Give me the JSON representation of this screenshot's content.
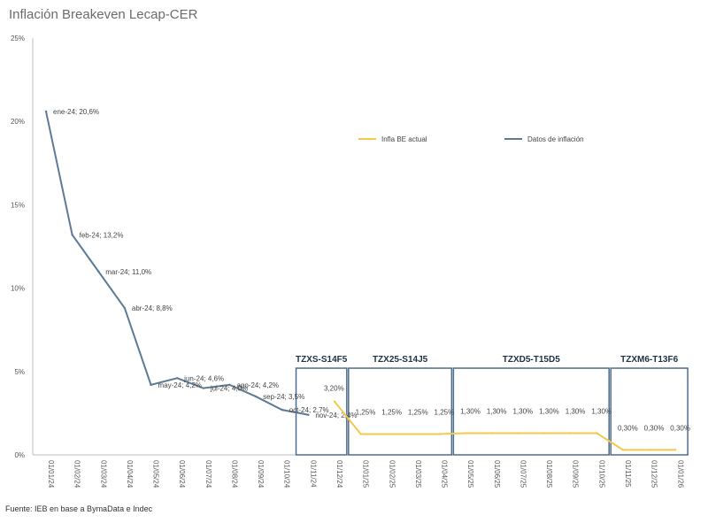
{
  "title": "Inflación Breakeven Lecap-CER",
  "source": "Fuente: IEB en base a BymaData e Indec",
  "colors": {
    "actual": "#5d7b95",
    "breakeven": "#f2c94c",
    "box": "#4e6d8e",
    "grid": "#d9d9d9",
    "axis": "#bfbfbf"
  },
  "chart_data": {
    "type": "line",
    "title": "Inflación Breakeven Lecap-CER",
    "ylim": [
      0,
      25
    ],
    "y_ticks": [
      "0%",
      "5%",
      "10%",
      "15%",
      "20%",
      "25%"
    ],
    "categories": [
      "01/01/24",
      "01/02/24",
      "01/03/24",
      "01/04/24",
      "01/05/24",
      "01/06/24",
      "01/07/24",
      "01/08/24",
      "01/09/24",
      "01/10/24",
      "01/11/24",
      "01/12/24",
      "01/01/25",
      "01/02/25",
      "01/03/25",
      "01/04/25",
      "01/05/25",
      "01/06/25",
      "01/07/25",
      "01/08/25",
      "01/09/25",
      "01/10/25",
      "01/11/25",
      "01/12/25",
      "01/01/26"
    ],
    "legend": [
      "Infla BE actual",
      "Datos de inflación"
    ],
    "series": [
      {
        "name": "Datos de inflación",
        "points": [
          {
            "x": "01/01/24",
            "y": 20.6,
            "label": "ene-24; 20,6%"
          },
          {
            "x": "01/02/24",
            "y": 13.2,
            "label": "feb-24; 13,2%"
          },
          {
            "x": "01/03/24",
            "y": 11.0,
            "label": "mar-24; 11,0%"
          },
          {
            "x": "01/04/24",
            "y": 8.8,
            "label": "abr-24; 8,8%"
          },
          {
            "x": "01/05/24",
            "y": 4.2,
            "label": "may-24; 4,2%"
          },
          {
            "x": "01/06/24",
            "y": 4.6,
            "label": "jun-24; 4,6%"
          },
          {
            "x": "01/07/24",
            "y": 4.0,
            "label": "jul-24; 4,0%"
          },
          {
            "x": "01/08/24",
            "y": 4.2,
            "label": "ago-24; 4,2%"
          },
          {
            "x": "01/09/24",
            "y": 3.5,
            "label": "sep-24; 3,5%"
          },
          {
            "x": "01/10/24",
            "y": 2.7,
            "label": "oct-24; 2,7%"
          },
          {
            "x": "01/11/24",
            "y": 2.4,
            "label": "nov-24; 2,4%"
          }
        ]
      },
      {
        "name": "Infla BE actual",
        "points": [
          {
            "x": "01/12/24",
            "y": 3.2,
            "label": "3,20%"
          },
          {
            "x": "01/01/25",
            "y": 1.25,
            "label": "1,25%"
          },
          {
            "x": "01/02/25",
            "y": 1.25,
            "label": "1,25%"
          },
          {
            "x": "01/03/25",
            "y": 1.25,
            "label": "1,25%"
          },
          {
            "x": "01/04/25",
            "y": 1.25,
            "label": "1,25%"
          },
          {
            "x": "01/05/25",
            "y": 1.3,
            "label": "1,30%"
          },
          {
            "x": "01/06/25",
            "y": 1.3,
            "label": "1,30%"
          },
          {
            "x": "01/07/25",
            "y": 1.3,
            "label": "1,30%"
          },
          {
            "x": "01/08/25",
            "y": 1.3,
            "label": "1,30%"
          },
          {
            "x": "01/09/25",
            "y": 1.3,
            "label": "1,30%"
          },
          {
            "x": "01/10/25",
            "y": 1.3,
            "label": "1,30%"
          },
          {
            "x": "01/11/25",
            "y": 0.3,
            "label": "0,30%"
          },
          {
            "x": "01/12/25",
            "y": 0.3,
            "label": "0,30%"
          },
          {
            "x": "01/01/26",
            "y": 0.3,
            "label": "0,30%"
          }
        ]
      }
    ],
    "boxes": [
      {
        "label": "TZXS-S14F5",
        "from": "01/11/24",
        "to": "01/12/24"
      },
      {
        "label": "TZX25-S14J5",
        "from": "01/01/25",
        "to": "01/04/25"
      },
      {
        "label": "TZXD5-T15D5",
        "from": "01/05/25",
        "to": "01/10/25"
      },
      {
        "label": "TZXM6-T13F6",
        "from": "01/11/25",
        "to": "01/01/26"
      }
    ]
  }
}
